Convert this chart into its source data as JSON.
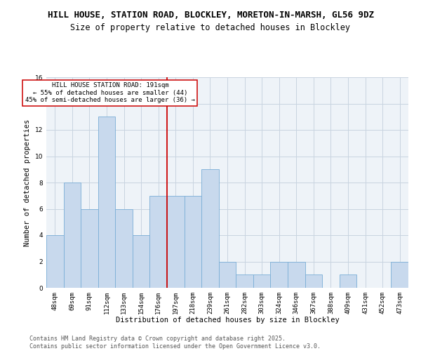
{
  "title": "HILL HOUSE, STATION ROAD, BLOCKLEY, MORETON-IN-MARSH, GL56 9DZ",
  "subtitle": "Size of property relative to detached houses in Blockley",
  "xlabel": "Distribution of detached houses by size in Blockley",
  "ylabel": "Number of detached properties",
  "categories": [
    "48sqm",
    "69sqm",
    "91sqm",
    "112sqm",
    "133sqm",
    "154sqm",
    "176sqm",
    "197sqm",
    "218sqm",
    "239sqm",
    "261sqm",
    "282sqm",
    "303sqm",
    "324sqm",
    "346sqm",
    "367sqm",
    "388sqm",
    "409sqm",
    "431sqm",
    "452sqm",
    "473sqm"
  ],
  "values": [
    4,
    8,
    6,
    13,
    6,
    4,
    7,
    7,
    7,
    9,
    2,
    1,
    1,
    2,
    2,
    1,
    0,
    1,
    0,
    0,
    2
  ],
  "bar_color": "#c8d9ed",
  "bar_edge_color": "#7aaed6",
  "grid_color": "#c8d4e0",
  "background_color": "#eef3f8",
  "ref_line_index": 7,
  "ref_line_label": "HILL HOUSE STATION ROAD: 191sqm",
  "ref_line_sublabel1": "← 55% of detached houses are smaller (44)",
  "ref_line_sublabel2": "45% of semi-detached houses are larger (36) →",
  "ref_line_color": "#cc0000",
  "ylim": [
    0,
    16
  ],
  "yticks": [
    0,
    2,
    4,
    6,
    8,
    10,
    12,
    14,
    16
  ],
  "footer1": "Contains HM Land Registry data © Crown copyright and database right 2025.",
  "footer2": "Contains public sector information licensed under the Open Government Licence v3.0.",
  "title_fontsize": 9,
  "subtitle_fontsize": 8.5,
  "axis_label_fontsize": 7.5,
  "tick_fontsize": 6.5,
  "annotation_fontsize": 6.5,
  "footer_fontsize": 6.0
}
